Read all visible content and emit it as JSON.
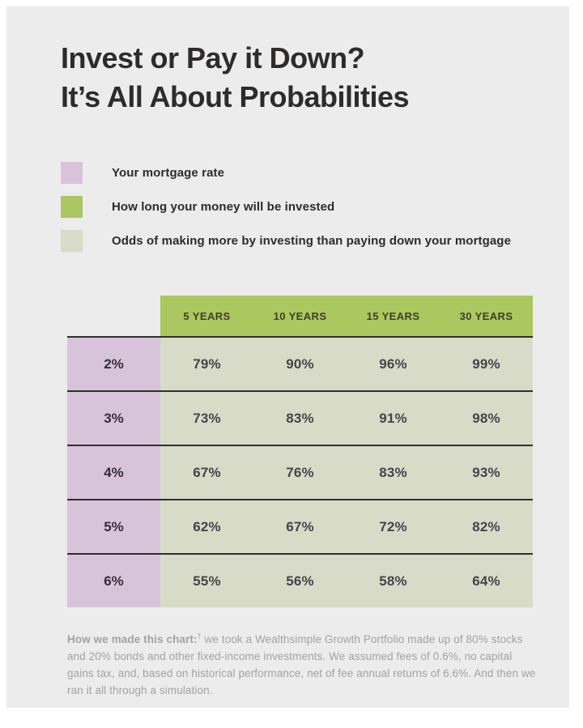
{
  "title": {
    "line1": "Invest or Pay it Down?",
    "line2": "It’s All About Probabilities"
  },
  "legend": {
    "items": [
      {
        "key": "mortgage-rate",
        "label": "Your mortgage rate",
        "color": "#d8c4da"
      },
      {
        "key": "investment-duration",
        "label": "How long your money will be invested",
        "color": "#abc75f"
      },
      {
        "key": "investing-odds",
        "label": "Odds of making more by investing than paying down your mortgage",
        "color": "#d8dbc7"
      }
    ]
  },
  "table": {
    "column_headers": [
      "5 YEARS",
      "10 YEARS",
      "15 YEARS",
      "30 YEARS"
    ],
    "rows": [
      {
        "rate": "2%",
        "values": [
          "79%",
          "90%",
          "96%",
          "99%"
        ]
      },
      {
        "rate": "3%",
        "values": [
          "73%",
          "83%",
          "91%",
          "98%"
        ]
      },
      {
        "rate": "4%",
        "values": [
          "67%",
          "76%",
          "83%",
          "93%"
        ]
      },
      {
        "rate": "5%",
        "values": [
          "62%",
          "67%",
          "72%",
          "82%"
        ]
      },
      {
        "rate": "6%",
        "values": [
          "55%",
          "56%",
          "58%",
          "64%"
        ]
      }
    ]
  },
  "footnote": {
    "bold_prefix": "How we made this chart:",
    "dagger": "†",
    "body": " we took a Wealthsimple Growth Portfolio made up of 80% stocks and 20% bonds and other fixed-income investments. We assumed fees of 0.6%, no capital gains tax, and, based on historical performance, net of fee annual returns of 6.6%. And then we ran it all through a simulation."
  },
  "colors": {
    "canvas_bg": "#edecec",
    "lavender": "#d8c4da",
    "green": "#abc75f",
    "sage": "#d8dbc7",
    "divider": "#2f2f2f",
    "title_text": "#2d2c2b",
    "header_text": "#3b4028",
    "row_label_text": "#352e3b",
    "cell_text": "#45444b",
    "footnote_text": "#a3a2a3"
  },
  "chart_data": {
    "type": "table",
    "title": "Invest or Pay it Down? It’s All About Probabilities",
    "row_dimension": "Your mortgage rate",
    "column_dimension": "How long your money will be invested",
    "value_meaning": "Odds of making more by investing than paying down your mortgage (%)",
    "columns": [
      "5 YEARS",
      "10 YEARS",
      "15 YEARS",
      "30 YEARS"
    ],
    "rows": [
      "2%",
      "3%",
      "4%",
      "5%",
      "6%"
    ],
    "values": [
      [
        79,
        90,
        96,
        99
      ],
      [
        73,
        83,
        91,
        98
      ],
      [
        67,
        76,
        83,
        93
      ],
      [
        62,
        67,
        72,
        82
      ],
      [
        55,
        56,
        58,
        64
      ]
    ]
  }
}
